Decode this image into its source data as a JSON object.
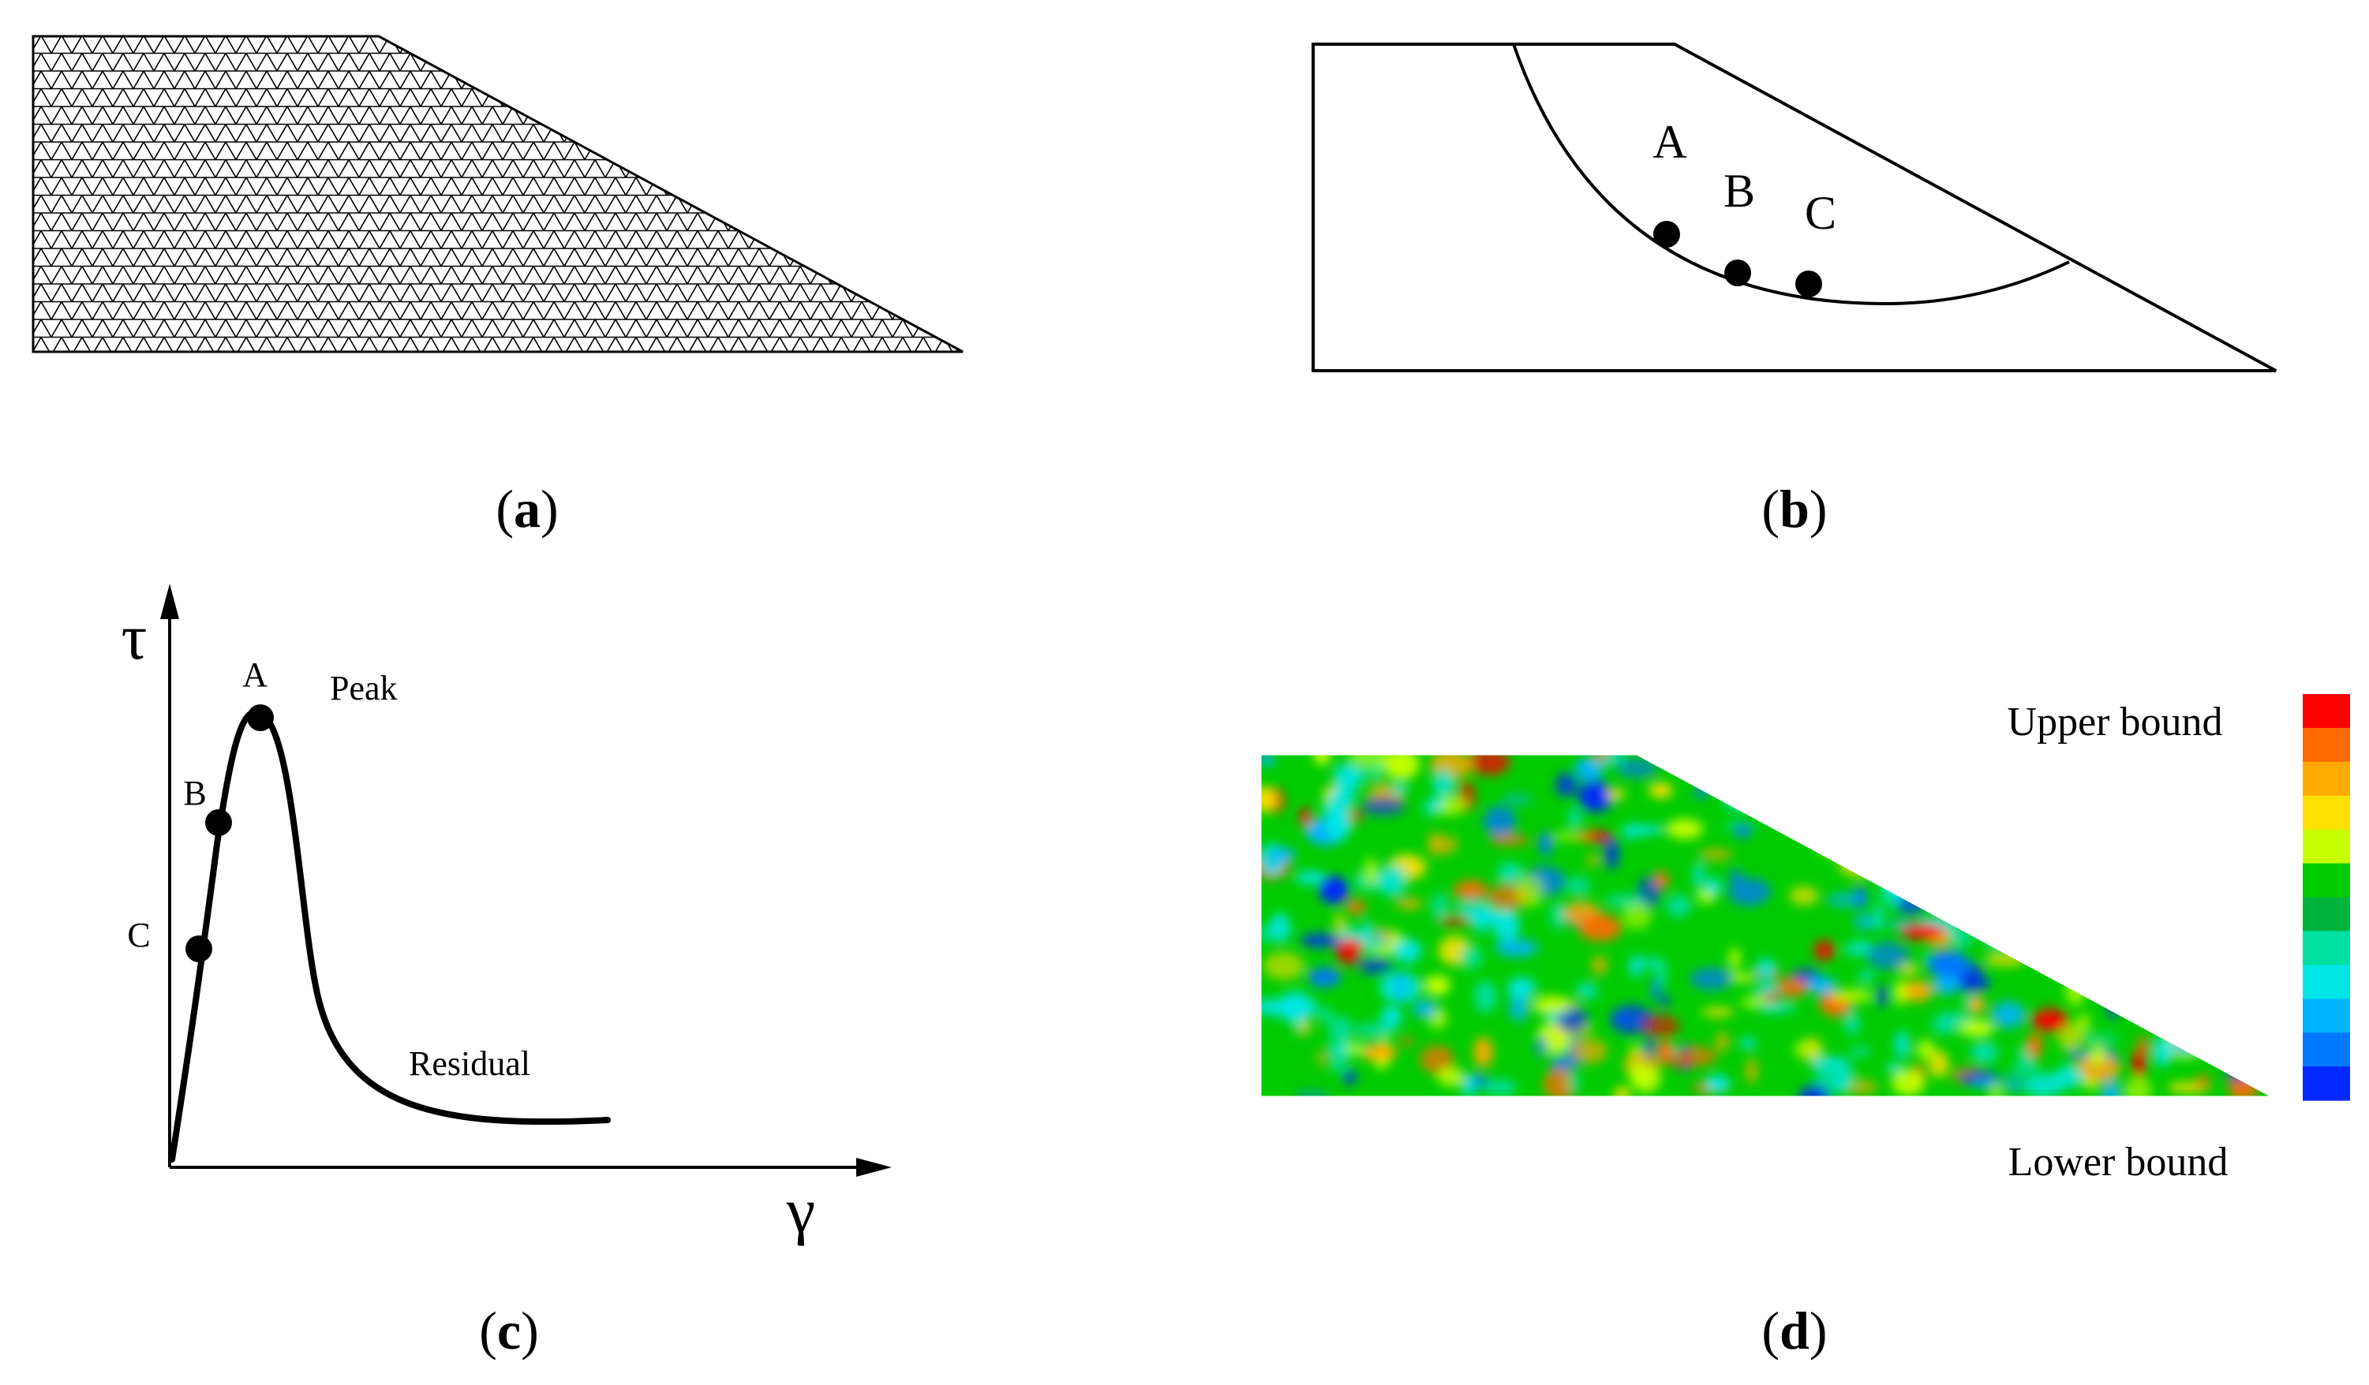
{
  "figure": {
    "panels": {
      "a": {
        "caption": {
          "open": "(",
          "letter": "a",
          "close": ")"
        }
      },
      "b": {
        "caption": {
          "open": "(",
          "letter": "b",
          "close": ")"
        },
        "points": [
          "A",
          "B",
          "C"
        ]
      },
      "c": {
        "caption": {
          "open": "(",
          "letter": "c",
          "close": ")"
        },
        "y_axis_symbol": "τ",
        "x_axis_symbol": "γ",
        "points": [
          "A",
          "B",
          "C"
        ],
        "annotations": {
          "peak": "Peak",
          "residual": "Residual"
        }
      },
      "d": {
        "caption": {
          "open": "(",
          "letter": "d",
          "close": ")"
        },
        "upper_label": "Upper bound",
        "lower_label": "Lower bound",
        "palette": [
          "#ff0000",
          "#ff6a00",
          "#ffaa00",
          "#ffe000",
          "#c8ff00",
          "#00cc00",
          "#00b33c",
          "#00e0a0",
          "#00e6e6",
          "#00b4ff",
          "#0078ff",
          "#0028ff"
        ]
      }
    }
  }
}
